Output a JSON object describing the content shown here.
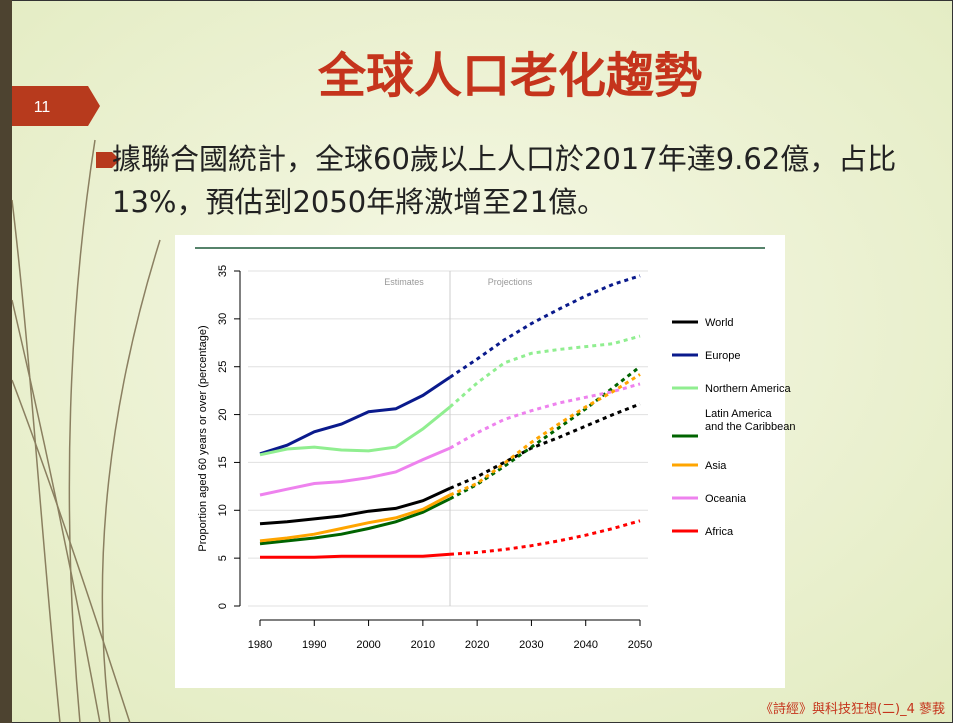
{
  "slide_number": "11",
  "title": "全球人口老化趨勢",
  "bullet": "據聯合國統計，全球60歲以上人口於2017年達9.62億，占比13%，預估到2050年將激增至21億。",
  "footer": "《詩經》與科技狂想(二)_4 蓼莪",
  "chart_data": {
    "type": "line",
    "ylabel": "Proportion aged 60 years or over (percentage)",
    "annotations": [
      "Estimates",
      "Projections"
    ],
    "estimates_end": 2015,
    "x": [
      1980,
      1985,
      1990,
      1995,
      2000,
      2005,
      2010,
      2015,
      2020,
      2025,
      2030,
      2035,
      2040,
      2045,
      2050
    ],
    "xlim": [
      1980,
      2050
    ],
    "xticks": [
      1980,
      1990,
      2000,
      2010,
      2020,
      2030,
      2040,
      2050
    ],
    "ylim": [
      0,
      35
    ],
    "yticks": [
      0,
      5,
      10,
      15,
      20,
      25,
      30,
      35
    ],
    "grid": true,
    "legend": "right",
    "series": [
      {
        "name": "World",
        "color": "#000000",
        "values": [
          8.6,
          8.8,
          9.1,
          9.4,
          9.9,
          10.2,
          11.0,
          12.3,
          13.5,
          15.0,
          16.5,
          17.6,
          18.8,
          20.0,
          21.1
        ]
      },
      {
        "name": "Europe",
        "color": "#0a1a8c",
        "values": [
          15.9,
          16.8,
          18.2,
          19.0,
          20.3,
          20.6,
          22.0,
          23.9,
          25.8,
          27.8,
          29.5,
          31.0,
          32.4,
          33.6,
          34.5
        ]
      },
      {
        "name": "Northern America",
        "color": "#90ee90",
        "values": [
          15.8,
          16.4,
          16.6,
          16.3,
          16.2,
          16.6,
          18.5,
          20.8,
          23.3,
          25.4,
          26.4,
          26.8,
          27.1,
          27.4,
          28.2
        ]
      },
      {
        "name": "Latin America\nand the Caribbean",
        "color": "#006400",
        "values": [
          6.5,
          6.8,
          7.1,
          7.5,
          8.1,
          8.8,
          9.8,
          11.2,
          12.7,
          14.6,
          16.6,
          18.6,
          20.6,
          22.8,
          25.0
        ]
      },
      {
        "name": "Asia",
        "color": "#ffa500",
        "values": [
          6.8,
          7.1,
          7.5,
          8.1,
          8.7,
          9.2,
          10.1,
          11.6,
          12.8,
          14.9,
          17.1,
          19.0,
          20.8,
          22.4,
          24.2
        ]
      },
      {
        "name": "Oceania",
        "color": "#ee82ee",
        "values": [
          11.6,
          12.2,
          12.8,
          13.0,
          13.4,
          14.0,
          15.3,
          16.5,
          18.1,
          19.5,
          20.4,
          21.2,
          21.8,
          22.4,
          23.2
        ]
      },
      {
        "name": "Africa",
        "color": "#ff0000",
        "values": [
          5.1,
          5.1,
          5.1,
          5.2,
          5.2,
          5.2,
          5.2,
          5.4,
          5.6,
          5.9,
          6.3,
          6.8,
          7.4,
          8.1,
          8.9
        ]
      }
    ]
  }
}
